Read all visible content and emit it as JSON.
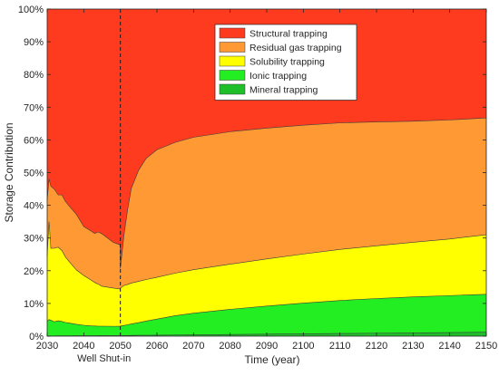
{
  "chart_data": {
    "type": "area",
    "stacked": true,
    "xlabel": "Time (year)",
    "ylabel": "Storage Contribution",
    "xlim": [
      2030,
      2150
    ],
    "ylim": [
      0,
      100
    ],
    "x_ticks": [
      2030,
      2040,
      2050,
      2060,
      2070,
      2080,
      2090,
      2100,
      2110,
      2120,
      2130,
      2140,
      2150
    ],
    "y_ticks": [
      0,
      10,
      20,
      30,
      40,
      50,
      60,
      70,
      80,
      90,
      100
    ],
    "y_tick_labels": [
      "0%",
      "10%",
      "20%",
      "30%",
      "40%",
      "50%",
      "60%",
      "70%",
      "80%",
      "90%",
      "100%"
    ],
    "grid": false,
    "legend_position": "top-center",
    "annotations": [
      {
        "type": "vertical-dashed-line",
        "x": 2050,
        "label": "Well Shut-in"
      }
    ],
    "x": [
      2030,
      2030.5,
      2031,
      2032,
      2033,
      2034,
      2035,
      2036,
      2038,
      2040,
      2042,
      2043,
      2044,
      2045,
      2048,
      2049.9,
      2050,
      2051,
      2052,
      2053,
      2055,
      2057,
      2060,
      2065,
      2070,
      2080,
      2090,
      2100,
      2110,
      2120,
      2130,
      2140,
      2150
    ],
    "series": [
      {
        "name": "Mineral trapping",
        "color": "#1fbf2a",
        "values": [
          0.05,
          0.05,
          0.06,
          0.07,
          0.08,
          0.08,
          0.09,
          0.1,
          0.11,
          0.12,
          0.13,
          0.14,
          0.15,
          0.15,
          0.16,
          0.17,
          0.17,
          0.18,
          0.2,
          0.22,
          0.25,
          0.28,
          0.3,
          0.35,
          0.4,
          0.5,
          0.6,
          0.7,
          0.8,
          0.9,
          1.0,
          1.1,
          1.2
        ]
      },
      {
        "name": "Ionic trapping",
        "color": "#22ee22",
        "values": [
          4.5,
          5.0,
          4.8,
          4.3,
          4.6,
          4.4,
          4.1,
          3.9,
          3.5,
          3.2,
          3.0,
          2.95,
          2.9,
          2.9,
          2.85,
          2.85,
          2.9,
          3.1,
          3.3,
          3.5,
          3.9,
          4.3,
          4.9,
          5.9,
          6.6,
          7.7,
          8.6,
          9.4,
          10.1,
          10.6,
          11.0,
          11.3,
          11.6
        ]
      },
      {
        "name": "Solubility trapping",
        "color": "#ffff00",
        "values": [
          20.0,
          30.0,
          22.0,
          22.5,
          22.5,
          21.7,
          20.0,
          18.8,
          16.6,
          15.2,
          14.0,
          13.3,
          12.8,
          12.2,
          11.7,
          11.4,
          11.6,
          12.2,
          12.3,
          12.5,
          12.6,
          12.7,
          12.8,
          13.0,
          13.3,
          13.8,
          14.4,
          15.0,
          15.6,
          16.1,
          16.7,
          17.3,
          18.2
        ]
      },
      {
        "name": "Residual gas trapping",
        "color": "#ff9933",
        "values": [
          17.0,
          13.0,
          19.0,
          18.0,
          16.0,
          17.0,
          17.0,
          17.0,
          17.0,
          15.0,
          15.0,
          15.0,
          16.0,
          16.0,
          14.0,
          13.5,
          6.0,
          15.5,
          23.0,
          29.0,
          34.0,
          37.0,
          39.0,
          40.0,
          40.5,
          40.5,
          40.0,
          39.4,
          38.7,
          37.9,
          37.0,
          36.4,
          35.7
        ]
      },
      {
        "name": "Structural trapping",
        "color": "#ff3b1f",
        "values": [
          58.45,
          51.95,
          54.14,
          55.13,
          56.82,
          56.82,
          58.81,
          60.2,
          62.79,
          66.48,
          67.87,
          68.61,
          68.15,
          68.75,
          71.29,
          72.08,
          79.33,
          69.02,
          61.2,
          54.78,
          49.25,
          45.72,
          43.0,
          40.75,
          39.2,
          37.5,
          36.4,
          35.5,
          34.8,
          34.5,
          34.3,
          33.9,
          33.3
        ]
      }
    ],
    "legend_order": [
      "Structural trapping",
      "Residual gas trapping",
      "Solubility trapping",
      "Ionic trapping",
      "Mineral trapping"
    ]
  }
}
